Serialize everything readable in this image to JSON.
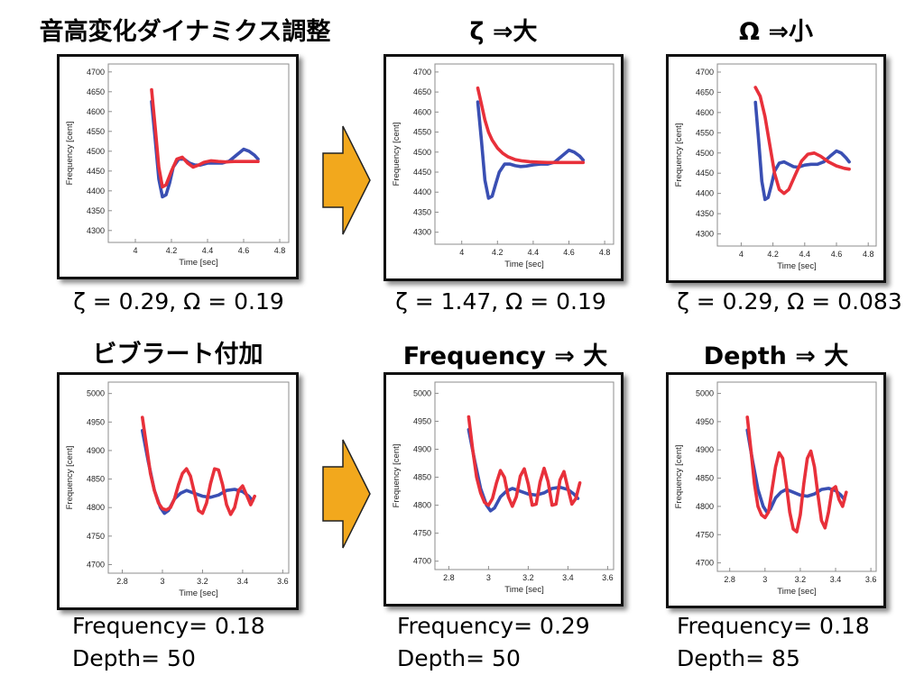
{
  "chart_data": [
    {
      "type": "line",
      "title": "音高変化ダイナミクス調整",
      "caption_lines": [
        "ζ = 0.29,  Ω = 0.19"
      ],
      "xlabel": "Time [sec]",
      "ylabel": "Frequency [cent]",
      "xlim": [
        3.85,
        4.85
      ],
      "ylim": [
        4270,
        4720
      ],
      "xticks": [
        "4",
        "4.2",
        "4.4",
        "4.6",
        "4.8"
      ],
      "yticks": [
        "4300",
        "4350",
        "4400",
        "4450",
        "4500",
        "4550",
        "4600",
        "4650",
        "4700"
      ],
      "series": [
        {
          "color": "#3a4fb3",
          "x": [
            4.09,
            4.11,
            4.13,
            4.15,
            4.17,
            4.19,
            4.21,
            4.24,
            4.27,
            4.3,
            4.33,
            4.36,
            4.4,
            4.44,
            4.48,
            4.52,
            4.56,
            4.6,
            4.63,
            4.66,
            4.68
          ],
          "y": [
            4625,
            4530,
            4430,
            4385,
            4390,
            4420,
            4460,
            4480,
            4480,
            4470,
            4465,
            4465,
            4470,
            4470,
            4470,
            4475,
            4490,
            4505,
            4500,
            4490,
            4480
          ]
        },
        {
          "color": "#e8303a",
          "x": [
            4.09,
            4.11,
            4.13,
            4.15,
            4.17,
            4.2,
            4.23,
            4.26,
            4.29,
            4.32,
            4.35,
            4.38,
            4.42,
            4.46,
            4.5,
            4.55,
            4.6,
            4.65,
            4.68
          ],
          "y": [
            4655,
            4560,
            4460,
            4410,
            4415,
            4450,
            4480,
            4485,
            4470,
            4460,
            4465,
            4472,
            4476,
            4474,
            4473,
            4474,
            4474,
            4474,
            4474
          ]
        }
      ]
    },
    {
      "type": "line",
      "title": "ζ ⇒大",
      "caption_lines": [
        "ζ = 1.47,  Ω = 0.19"
      ],
      "xlabel": "Time [sec]",
      "ylabel": "Frequency [cent]",
      "xlim": [
        3.85,
        4.85
      ],
      "ylim": [
        4270,
        4720
      ],
      "xticks": [
        "4",
        "4.2",
        "4.4",
        "4.6",
        "4.8"
      ],
      "yticks": [
        "4300",
        "4350",
        "4400",
        "4450",
        "4500",
        "4550",
        "4600",
        "4650",
        "4700"
      ],
      "series": [
        {
          "color": "#3a4fb3",
          "x": [
            4.09,
            4.11,
            4.13,
            4.15,
            4.17,
            4.19,
            4.21,
            4.24,
            4.27,
            4.3,
            4.33,
            4.36,
            4.4,
            4.44,
            4.48,
            4.52,
            4.56,
            4.6,
            4.63,
            4.66,
            4.68
          ],
          "y": [
            4625,
            4530,
            4430,
            4385,
            4390,
            4420,
            4450,
            4470,
            4470,
            4466,
            4464,
            4465,
            4468,
            4470,
            4470,
            4475,
            4490,
            4505,
            4500,
            4490,
            4480
          ]
        },
        {
          "color": "#e8303a",
          "x": [
            4.09,
            4.11,
            4.13,
            4.15,
            4.17,
            4.2,
            4.23,
            4.26,
            4.3,
            4.34,
            4.38,
            4.43,
            4.48,
            4.55,
            4.62,
            4.68
          ],
          "y": [
            4660,
            4620,
            4580,
            4550,
            4530,
            4510,
            4497,
            4488,
            4481,
            4478,
            4476,
            4475,
            4474,
            4474,
            4474,
            4474
          ]
        }
      ]
    },
    {
      "type": "line",
      "title": "Ω ⇒小",
      "caption_lines": [
        "ζ = 0.29,  Ω = 0.083"
      ],
      "xlabel": "Time [sec]",
      "ylabel": "Frequency [cent]",
      "xlim": [
        3.85,
        4.85
      ],
      "ylim": [
        4270,
        4720
      ],
      "xticks": [
        "4",
        "4.2",
        "4.4",
        "4.6",
        "4.8"
      ],
      "yticks": [
        "4300",
        "4350",
        "4400",
        "4450",
        "4500",
        "4550",
        "4600",
        "4650",
        "4700"
      ],
      "series": [
        {
          "color": "#3a4fb3",
          "x": [
            4.09,
            4.11,
            4.13,
            4.15,
            4.17,
            4.19,
            4.21,
            4.24,
            4.27,
            4.3,
            4.33,
            4.36,
            4.4,
            4.44,
            4.48,
            4.52,
            4.56,
            4.6,
            4.63,
            4.66,
            4.68
          ],
          "y": [
            4625,
            4530,
            4430,
            4385,
            4390,
            4420,
            4455,
            4475,
            4478,
            4472,
            4466,
            4465,
            4470,
            4472,
            4472,
            4478,
            4492,
            4505,
            4500,
            4488,
            4478
          ]
        },
        {
          "color": "#e8303a",
          "x": [
            4.09,
            4.12,
            4.15,
            4.18,
            4.21,
            4.24,
            4.27,
            4.3,
            4.34,
            4.38,
            4.42,
            4.46,
            4.5,
            4.55,
            4.6,
            4.65,
            4.68
          ],
          "y": [
            4662,
            4640,
            4590,
            4520,
            4450,
            4410,
            4400,
            4410,
            4445,
            4480,
            4497,
            4500,
            4492,
            4478,
            4468,
            4462,
            4460
          ]
        }
      ]
    },
    {
      "type": "line",
      "title": "ビブラート付加",
      "caption_lines": [
        "Frequency= 0.18",
        "Depth= 50"
      ],
      "xlabel": "Time [sec]",
      "ylabel": "Frequency [cent]",
      "xlim": [
        2.73,
        3.63
      ],
      "ylim": [
        4685,
        5020
      ],
      "xticks": [
        "2.8",
        "3",
        "3.2",
        "3.4",
        "3.6"
      ],
      "yticks": [
        "4700",
        "4750",
        "4800",
        "4850",
        "4900",
        "4950",
        "5000"
      ],
      "series": [
        {
          "color": "#3a4fb3",
          "x": [
            2.9,
            2.93,
            2.96,
            2.99,
            3.01,
            3.03,
            3.06,
            3.09,
            3.12,
            3.16,
            3.2,
            3.24,
            3.28,
            3.32,
            3.36,
            3.4,
            3.43,
            3.45
          ],
          "y": [
            4935,
            4880,
            4830,
            4800,
            4790,
            4795,
            4815,
            4825,
            4830,
            4825,
            4820,
            4818,
            4822,
            4830,
            4832,
            4828,
            4820,
            4812
          ]
        },
        {
          "color": "#e8303a",
          "x": [
            2.9,
            2.92,
            2.94,
            2.96,
            2.98,
            3.0,
            3.02,
            3.04,
            3.06,
            3.08,
            3.1,
            3.12,
            3.14,
            3.16,
            3.18,
            3.2,
            3.22,
            3.24,
            3.26,
            3.28,
            3.3,
            3.32,
            3.34,
            3.36,
            3.38,
            3.4,
            3.42,
            3.44,
            3.46
          ],
          "y": [
            4958,
            4910,
            4860,
            4830,
            4808,
            4798,
            4796,
            4800,
            4815,
            4840,
            4860,
            4868,
            4855,
            4825,
            4795,
            4790,
            4808,
            4842,
            4868,
            4866,
            4840,
            4805,
            4788,
            4800,
            4830,
            4838,
            4822,
            4805,
            4820
          ]
        }
      ]
    },
    {
      "type": "line",
      "title": "Frequency ⇒ 大",
      "caption_lines": [
        "Frequency= 0.29",
        "Depth= 50"
      ],
      "xlabel": "Time [sec]",
      "ylabel": "Frequency [cent]",
      "xlim": [
        2.73,
        3.63
      ],
      "ylim": [
        4685,
        5020
      ],
      "xticks": [
        "2.8",
        "3",
        "3.2",
        "3.4",
        "3.6"
      ],
      "yticks": [
        "4700",
        "4750",
        "4800",
        "4850",
        "4900",
        "4950",
        "5000"
      ],
      "series": [
        {
          "color": "#3a4fb3",
          "x": [
            2.9,
            2.93,
            2.96,
            2.99,
            3.01,
            3.03,
            3.06,
            3.09,
            3.12,
            3.16,
            3.2,
            3.24,
            3.28,
            3.32,
            3.36,
            3.4,
            3.43,
            3.45
          ],
          "y": [
            4935,
            4880,
            4830,
            4800,
            4790,
            4795,
            4815,
            4825,
            4830,
            4825,
            4820,
            4818,
            4822,
            4830,
            4832,
            4828,
            4820,
            4812
          ]
        },
        {
          "color": "#e8303a",
          "x": [
            2.9,
            2.92,
            2.94,
            2.96,
            2.98,
            3.0,
            3.02,
            3.04,
            3.06,
            3.08,
            3.1,
            3.12,
            3.14,
            3.16,
            3.18,
            3.2,
            3.22,
            3.24,
            3.26,
            3.28,
            3.3,
            3.32,
            3.34,
            3.36,
            3.38,
            3.4,
            3.42,
            3.44,
            3.46
          ],
          "y": [
            4958,
            4900,
            4850,
            4822,
            4805,
            4800,
            4812,
            4840,
            4862,
            4850,
            4815,
            4798,
            4815,
            4852,
            4865,
            4838,
            4800,
            4802,
            4842,
            4866,
            4842,
            4800,
            4802,
            4845,
            4860,
            4830,
            4802,
            4812,
            4840
          ]
        }
      ]
    },
    {
      "type": "line",
      "title": "Depth ⇒ 大",
      "caption_lines": [
        "Frequency= 0.18",
        "Depth= 85"
      ],
      "xlabel": "Time [sec]",
      "ylabel": "Frequency [cent]",
      "xlim": [
        2.73,
        3.63
      ],
      "ylim": [
        4685,
        5020
      ],
      "xticks": [
        "2.8",
        "3",
        "3.2",
        "3.4",
        "3.6"
      ],
      "yticks": [
        "4700",
        "4750",
        "4800",
        "4850",
        "4900",
        "4950",
        "5000"
      ],
      "series": [
        {
          "color": "#3a4fb3",
          "x": [
            2.9,
            2.93,
            2.96,
            2.99,
            3.01,
            3.03,
            3.06,
            3.09,
            3.12,
            3.16,
            3.2,
            3.24,
            3.28,
            3.32,
            3.36,
            3.4,
            3.43,
            3.45
          ],
          "y": [
            4935,
            4880,
            4830,
            4800,
            4790,
            4795,
            4815,
            4825,
            4830,
            4825,
            4820,
            4818,
            4822,
            4830,
            4832,
            4828,
            4820,
            4812
          ]
        },
        {
          "color": "#e8303a",
          "x": [
            2.9,
            2.92,
            2.94,
            2.96,
            2.98,
            3.0,
            3.02,
            3.04,
            3.06,
            3.08,
            3.1,
            3.12,
            3.14,
            3.16,
            3.18,
            3.2,
            3.22,
            3.24,
            3.26,
            3.28,
            3.3,
            3.32,
            3.34,
            3.36,
            3.38,
            3.4,
            3.42,
            3.44,
            3.46
          ],
          "y": [
            4958,
            4900,
            4840,
            4800,
            4785,
            4780,
            4790,
            4830,
            4870,
            4895,
            4885,
            4840,
            4790,
            4760,
            4755,
            4785,
            4840,
            4885,
            4898,
            4870,
            4820,
            4775,
            4762,
            4790,
            4830,
            4835,
            4812,
            4800,
            4825
          ]
        }
      ]
    }
  ],
  "arrow_color": "#f2a81d"
}
